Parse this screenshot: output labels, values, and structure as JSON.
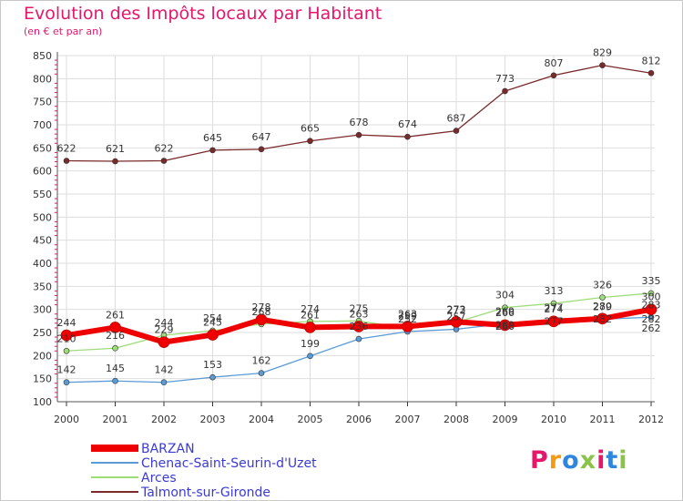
{
  "title": "Evolution des Impôts locaux par Habitant",
  "subtitle": "(en € et par an)",
  "logo": "Proxiti",
  "colors": {
    "BARZAN": "#ee0000",
    "Chenac-Saint-Seurin-d'Uzet": "#5b9bd5",
    "Arces": "#9edc78",
    "Talmont-sur-Gironde": "#7a2a2a",
    "title": "#e5176b",
    "grid": "#dddddd"
  },
  "chart_data": {
    "type": "line",
    "title": "Evolution des Impôts locaux par Habitant",
    "subtitle": "(en € et par an)",
    "x": [
      2000,
      2001,
      2002,
      2003,
      2004,
      2005,
      2006,
      2007,
      2008,
      2009,
      2010,
      2011,
      2012
    ],
    "ylim": [
      100,
      850
    ],
    "yticks": [
      100,
      150,
      200,
      250,
      300,
      350,
      400,
      450,
      500,
      550,
      600,
      650,
      700,
      750,
      800,
      850
    ],
    "grid": true,
    "legend_position": "bottom-left",
    "series": [
      {
        "name": "Talmont-sur-Gironde",
        "values": [
          622,
          621,
          622,
          645,
          647,
          665,
          678,
          674,
          687,
          773,
          807,
          829,
          812
        ],
        "labels": [
          "622",
          "621",
          "622",
          "645",
          "647",
          "665",
          "678",
          "674",
          "687",
          "773",
          "807",
          "829",
          "812"
        ]
      },
      {
        "name": "Chenac-Saint-Seurin-d'Uzet",
        "values": [
          142,
          145,
          142,
          153,
          162,
          199,
          236,
          252,
          257,
          269,
          277,
          279,
          283
        ],
        "labels": [
          "142",
          "145",
          "142",
          "153",
          "162",
          "199",
          "236",
          "252",
          "257",
          "269",
          "277",
          "279",
          "283"
        ]
      },
      {
        "name": "Arces",
        "values": [
          210,
          216,
          244,
          254,
          268,
          274,
          275,
          259,
          272,
          304,
          313,
          326,
          335
        ],
        "labels": [
          "210",
          "216",
          "244",
          "254",
          "268",
          "274",
          "275",
          "259",
          "272",
          "304",
          "313",
          "326",
          "335"
        ]
      },
      {
        "name": "BARZAN",
        "values": [
          244,
          261,
          229,
          245,
          278,
          261,
          263,
          263,
          273,
          266,
          274,
          280,
          300
        ],
        "labels": [
          "244",
          "261",
          "229",
          "245",
          "278",
          "261",
          "263",
          "263",
          "273",
          "266",
          "274",
          "280",
          "300"
        ]
      }
    ],
    "extra_labels": [
      "266",
      "269",
      "277",
      "282",
      "282",
      "262"
    ]
  },
  "legend": [
    {
      "name": "BARZAN"
    },
    {
      "name": "Chenac-Saint-Seurin-d'Uzet"
    },
    {
      "name": "Arces"
    },
    {
      "name": "Talmont-sur-Gironde"
    }
  ]
}
